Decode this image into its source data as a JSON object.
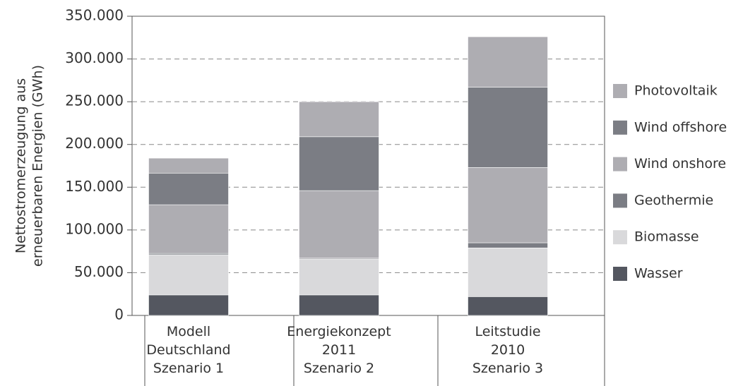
{
  "chart_data": {
    "type": "stacked_bar",
    "y_label": [
      "Nettostromerzeugung aus",
      "erneuerbaren Energien (GWh)"
    ],
    "categories": [
      "Modell\nDeutschland\nSzenario 1",
      "Energiekonzept\n2011\nSzenario 2",
      "Leitstudie\n2010\nSzenario 3"
    ],
    "series": [
      {
        "name": "Wasser",
        "color": "#545760",
        "values": [
          24000,
          24000,
          22000
        ]
      },
      {
        "name": "Biomasse",
        "color": "#d9d9db",
        "values": [
          47000,
          42000,
          57000
        ]
      },
      {
        "name": "Geothermie",
        "color": "#7b7d84",
        "values": [
          1500,
          1000,
          6000
        ]
      },
      {
        "name": "Wind onshore",
        "color": "#aeadb2",
        "values": [
          57000,
          79000,
          88000
        ]
      },
      {
        "name": "Wind offshore",
        "color": "#7b7d84",
        "values": [
          37000,
          63000,
          94000
        ]
      },
      {
        "name": "Photovoltaik",
        "color": "#aeadb2",
        "values": [
          17500,
          41000,
          59000
        ]
      }
    ],
    "ylim": [
      0,
      350000
    ],
    "yticks": [
      0,
      {
        "value": 50000,
        "label": "50.000"
      },
      {
        "value": 100000,
        "label": "100.000"
      },
      {
        "value": 150000,
        "label": "150.000"
      },
      {
        "value": 200000,
        "label": "200.000"
      },
      {
        "value": 250000,
        "label": "250.000"
      },
      {
        "value": 300000,
        "label": "300.000"
      },
      {
        "value": 350000,
        "label": "350.000"
      }
    ],
    "grid": true,
    "legend": "right"
  }
}
